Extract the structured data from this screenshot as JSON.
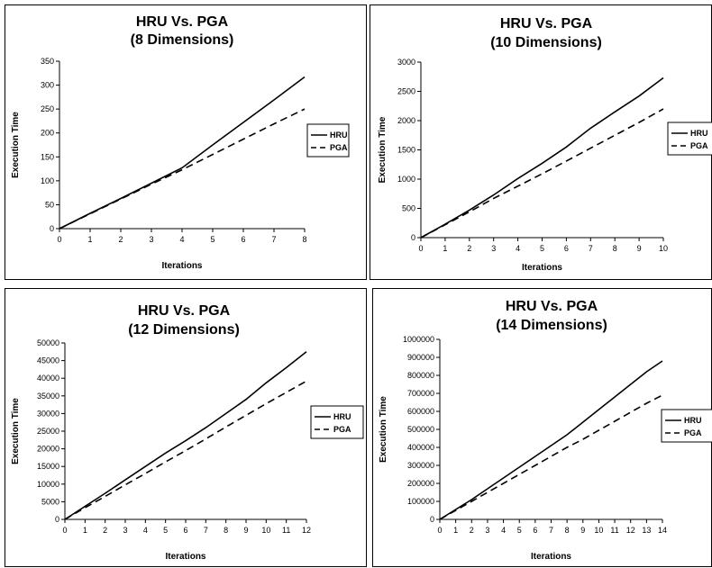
{
  "chart_data": [
    {
      "type": "line",
      "title": "HRU Vs. PGA",
      "subtitle": "(8 Dimensions)",
      "xlabel": "Iterations",
      "ylabel": "Execution Time",
      "xlim": [
        0,
        8
      ],
      "ylim": [
        0,
        350
      ],
      "x_ticks": [
        0,
        1,
        2,
        3,
        4,
        5,
        6,
        7,
        8
      ],
      "y_ticks": [
        0,
        50,
        100,
        150,
        200,
        250,
        300,
        350
      ],
      "x": [
        0,
        1,
        2,
        3,
        4,
        5,
        6,
        7,
        8
      ],
      "series": [
        {
          "name": "HRU",
          "style": "solid",
          "values": [
            0,
            32,
            63,
            95,
            127,
            175,
            222,
            269,
            317
          ]
        },
        {
          "name": "PGA",
          "style": "dashed",
          "values": [
            0,
            31,
            62,
            93,
            123,
            155,
            187,
            219,
            250
          ]
        }
      ],
      "legend": "right",
      "grid": false
    },
    {
      "type": "line",
      "title": "HRU Vs. PGA",
      "subtitle": "(10 Dimensions)",
      "xlabel": "Iterations",
      "ylabel": "Execution Time",
      "xlim": [
        0,
        10
      ],
      "ylim": [
        0,
        3000
      ],
      "x_ticks": [
        0,
        1,
        2,
        3,
        4,
        5,
        6,
        7,
        8,
        9,
        10
      ],
      "y_ticks": [
        0,
        500,
        1000,
        1500,
        2000,
        2500,
        3000
      ],
      "x": [
        0,
        1,
        2,
        3,
        4,
        5,
        6,
        7,
        8,
        9,
        10
      ],
      "series": [
        {
          "name": "HRU",
          "style": "solid",
          "values": [
            0,
            230,
            470,
            730,
            1010,
            1270,
            1550,
            1870,
            2150,
            2420,
            2730
          ]
        },
        {
          "name": "PGA",
          "style": "dashed",
          "values": [
            0,
            220,
            440,
            670,
            880,
            1090,
            1310,
            1530,
            1750,
            1970,
            2200
          ]
        }
      ],
      "legend": "right",
      "grid": false
    },
    {
      "type": "line",
      "title": "HRU Vs. PGA",
      "subtitle": "(12 Dimensions)",
      "xlabel": "Iterations",
      "ylabel": "Execution Time",
      "xlim": [
        0,
        12
      ],
      "ylim": [
        0,
        50000
      ],
      "x_ticks": [
        0,
        1,
        2,
        3,
        4,
        5,
        6,
        7,
        8,
        9,
        10,
        11,
        12
      ],
      "y_ticks": [
        0,
        5000,
        10000,
        15000,
        20000,
        25000,
        30000,
        35000,
        40000,
        45000,
        50000
      ],
      "x": [
        0,
        1,
        2,
        3,
        4,
        5,
        6,
        7,
        8,
        9,
        10,
        11,
        12
      ],
      "series": [
        {
          "name": "HRU",
          "style": "solid",
          "values": [
            0,
            3700,
            7400,
            11200,
            15000,
            18800,
            22300,
            26000,
            30000,
            34000,
            38700,
            43000,
            47500
          ]
        },
        {
          "name": "PGA",
          "style": "dashed",
          "values": [
            0,
            3300,
            6500,
            9800,
            13000,
            16300,
            19500,
            22800,
            26200,
            29500,
            32800,
            36000,
            39200
          ]
        }
      ],
      "legend": "right",
      "grid": false
    },
    {
      "type": "line",
      "title": "HRU Vs. PGA",
      "subtitle": "(14 Dimensions)",
      "xlabel": "Iterations",
      "ylabel": "Execution Time",
      "xlim": [
        0,
        14
      ],
      "ylim": [
        0,
        1000000
      ],
      "x_ticks": [
        0,
        1,
        2,
        3,
        4,
        5,
        6,
        7,
        8,
        9,
        10,
        11,
        12,
        13,
        14
      ],
      "y_ticks": [
        0,
        100000,
        200000,
        300000,
        400000,
        500000,
        600000,
        700000,
        800000,
        900000,
        1000000
      ],
      "x": [
        0,
        1,
        2,
        3,
        4,
        5,
        6,
        7,
        8,
        9,
        10,
        11,
        12,
        13,
        14
      ],
      "series": [
        {
          "name": "HRU",
          "style": "solid",
          "values": [
            0,
            55000,
            110000,
            170000,
            230000,
            290000,
            350000,
            410000,
            470000,
            540000,
            610000,
            680000,
            750000,
            820000,
            880000
          ]
        },
        {
          "name": "PGA",
          "style": "dashed",
          "values": [
            0,
            50000,
            100000,
            150000,
            200000,
            250000,
            300000,
            350000,
            400000,
            445000,
            495000,
            545000,
            595000,
            645000,
            690000
          ]
        }
      ],
      "legend": "right",
      "grid": false
    }
  ]
}
